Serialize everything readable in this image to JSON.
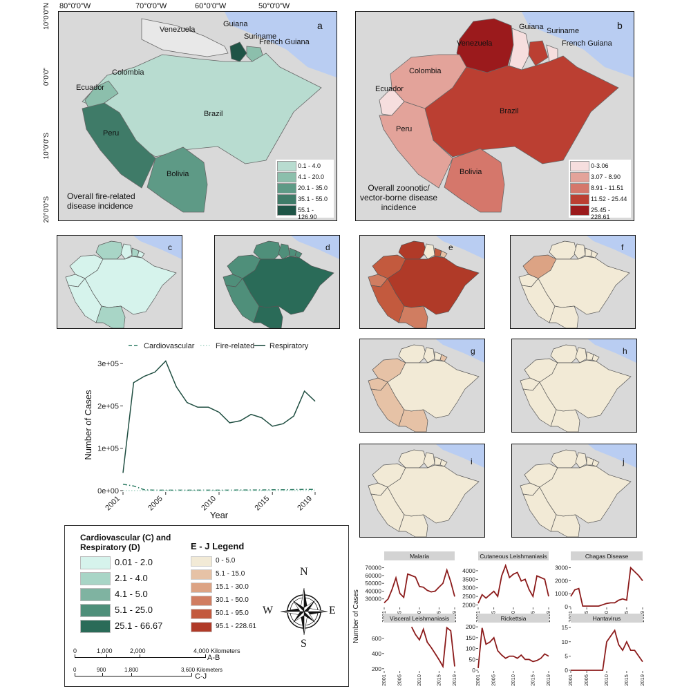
{
  "coords": {
    "top_longitudes": [
      "80°0'0\"W",
      "70°0'0\"W",
      "60°0'0\"W",
      "50°0'0\"W"
    ],
    "left_latitudes": [
      "10°0'0\"N",
      "0°0'0\"",
      "10°0'0\"S",
      "20°0'0\"S"
    ]
  },
  "panel_a": {
    "letter": "a",
    "title_line1": "Overall fire-related",
    "title_line2": "disease incidence",
    "countries": {
      "venezuela": "Venezuela",
      "guiana": "Guiana",
      "suriname": "Suriname",
      "french_guiana": "French Guiana",
      "colombia": "Colombia",
      "ecuador": "Ecuador",
      "brazil": "Brazil",
      "peru": "Peru",
      "bolivia": "Bolivia"
    },
    "legend": [
      {
        "label": "0.1 - 4.0",
        "color": "#b8dcd0"
      },
      {
        "label": "4.1 - 20.0",
        "color": "#8cbfac"
      },
      {
        "label": "20.1 - 35.0",
        "color": "#5e9a86"
      },
      {
        "label": "35.1 - 55.0",
        "color": "#3f7b68"
      },
      {
        "label": "55.1 - 126.90",
        "color": "#1f5446"
      }
    ]
  },
  "panel_b": {
    "letter": "b",
    "title_line1": "Overall zoonotic/",
    "title_line2": "vector-borne disease",
    "title_line3": "incidence",
    "countries": {
      "venezuela": "Venezuela",
      "guiana": "Guiana",
      "suriname": "Suriname",
      "french_guiana": "French Guiana",
      "colombia": "Colombia",
      "ecuador": "Ecuador",
      "brazil": "Brazil",
      "peru": "Peru",
      "bolivia": "Bolivia"
    },
    "legend": [
      {
        "label": "0-3.06",
        "color": "#f6dede"
      },
      {
        "label": "3.07 - 8.90",
        "color": "#e3a39a"
      },
      {
        "label": "8.91 - 11.51",
        "color": "#d5776b"
      },
      {
        "label": "11.52 - 25.44",
        "color": "#bb3f32"
      },
      {
        "label": "25.45 - 228.61",
        "color": "#9b1a1c"
      }
    ]
  },
  "small_panels": {
    "c": "c",
    "d": "d",
    "e": "e",
    "f": "f",
    "g": "g",
    "h": "h",
    "i": "i",
    "j": "j"
  },
  "legend_box": {
    "cr_title_line1": "Cardiovascular (C) and",
    "cr_title_line2": "Respiratory (D)",
    "cr_items": [
      {
        "label": "0.01 - 2.0",
        "color": "#d6f3ec"
      },
      {
        "label": "2.1 - 4.0",
        "color": "#a8d5c6"
      },
      {
        "label": "4.1 - 5.0",
        "color": "#7fb3a1"
      },
      {
        "label": "5.1 - 25.0",
        "color": "#4f8f7a"
      },
      {
        "label": "25.1 - 66.67",
        "color": "#2a6b58"
      }
    ],
    "ej_title": "E - J Legend",
    "ej_items": [
      {
        "label": "0 - 5.0",
        "color": "#f2ead6"
      },
      {
        "label": "5.1 - 15.0",
        "color": "#e6c2a6"
      },
      {
        "label": "15.1 - 30.0",
        "color": "#dca384"
      },
      {
        "label": "30.1 - 50.0",
        "color": "#d07d61"
      },
      {
        "label": "50.1 - 95.0",
        "color": "#c35a3e"
      },
      {
        "label": "95.1 - 228.61",
        "color": "#b03a28"
      }
    ],
    "compass": {
      "n": "N",
      "s": "S",
      "e": "E",
      "w": "W"
    },
    "scale_ab": {
      "ticks": [
        "0",
        "1,000",
        "2,000",
        "4,000 Kilometers"
      ],
      "label": "A-B"
    },
    "scale_cj": {
      "ticks": [
        "0",
        "900",
        "1,800",
        "3,600 Kilometers"
      ],
      "label": "C-J"
    }
  },
  "colors": {
    "ocean": "#b9cdf2",
    "land_other": "#d9d9d9",
    "border": "#555555"
  },
  "chart_data": [
    {
      "type": "line",
      "title": "",
      "xlabel": "Year",
      "ylabel": "Number of Cases",
      "x": [
        2001,
        2002,
        2003,
        2004,
        2005,
        2006,
        2007,
        2008,
        2009,
        2010,
        2011,
        2012,
        2013,
        2014,
        2015,
        2016,
        2017,
        2018,
        2019
      ],
      "xticks": [
        "2001",
        "2005",
        "2010",
        "2015",
        "2019"
      ],
      "yticks": [
        "0e+00",
        "1e+05",
        "2e+05",
        "3e+05"
      ],
      "ylim": [
        0,
        310000
      ],
      "legend": "top",
      "series": [
        {
          "name": "Cardiovascular",
          "color": "#2a7a62",
          "style": "dashed",
          "values": [
            15000,
            11000,
            2000,
            1000,
            1000,
            1000,
            1000,
            1000,
            1000,
            1000,
            1000,
            1500,
            1500,
            1500,
            2000,
            2000,
            2500,
            3000,
            3000
          ]
        },
        {
          "name": "Fire-related",
          "color": "#a8d5c6",
          "style": "dotted",
          "values": [
            0,
            0,
            0,
            0,
            0,
            0,
            0,
            0,
            0,
            0,
            0,
            0,
            0,
            0,
            0,
            0,
            0,
            0,
            0
          ]
        },
        {
          "name": "Respiratory",
          "color": "#1e4d40",
          "style": "solid",
          "values": [
            42000,
            255000,
            270000,
            280000,
            306000,
            245000,
            208000,
            197000,
            197000,
            185000,
            160000,
            165000,
            180000,
            172000,
            152000,
            158000,
            176000,
            235000,
            211000
          ]
        }
      ]
    },
    {
      "type": "line",
      "title": "",
      "ylabel": "Number of Cases",
      "x": [
        2001,
        2002,
        2003,
        2004,
        2005,
        2006,
        2007,
        2008,
        2009,
        2010,
        2011,
        2012,
        2013,
        2014,
        2015,
        2016,
        2017,
        2018,
        2019
      ],
      "xticks": [
        "2001",
        "2005",
        "2010",
        "2015",
        "2019"
      ],
      "facets": [
        {
          "name": "Malaria",
          "ylim": [
            20000,
            75000
          ],
          "yticks": [
            30000,
            40000,
            50000,
            60000,
            70000
          ],
          "values": [
            25000,
            30000,
            42000,
            57000,
            37000,
            32000,
            62000,
            60000,
            58000,
            46000,
            45000,
            41000,
            39000,
            40000,
            45000,
            50000,
            67000,
            52000,
            33000
          ]
        },
        {
          "name": "Cutaneous Leishmaniasis",
          "ylim": [
            1900,
            4400
          ],
          "yticks": [
            2000,
            2500,
            3000,
            3500,
            4000
          ],
          "values": [
            2100,
            2600,
            2400,
            2600,
            2800,
            2500,
            3700,
            4300,
            3600,
            3800,
            3900,
            3400,
            3500,
            2900,
            2500,
            3700,
            3600,
            3500,
            2500
          ]
        },
        {
          "name": "Chagas Disease",
          "ylim": [
            0,
            3300
          ],
          "yticks": [
            0,
            1000,
            2000,
            3000
          ],
          "values": [
            800,
            1300,
            1400,
            50,
            50,
            50,
            50,
            50,
            150,
            250,
            300,
            300,
            500,
            600,
            500,
            3000,
            2700,
            2400,
            2000
          ]
        },
        {
          "name": "Visceral Leishmaniasis",
          "ylim": [
            180,
            780
          ],
          "yticks": [
            200,
            400,
            600
          ],
          "values": [
            null,
            null,
            null,
            null,
            null,
            null,
            null,
            750,
            650,
            580,
            720,
            550,
            480,
            400,
            320,
            230,
            740,
            700,
            230
          ]
        },
        {
          "name": "Rickettsia",
          "ylim": [
            0,
            210
          ],
          "yticks": [
            0,
            50,
            100,
            150,
            200
          ],
          "values": [
            10,
            195,
            120,
            130,
            150,
            90,
            70,
            55,
            65,
            65,
            55,
            70,
            50,
            50,
            40,
            45,
            55,
            75,
            65
          ]
        },
        {
          "name": "Hantavirus",
          "ylim": [
            0,
            16
          ],
          "yticks": [
            0,
            5,
            10,
            15
          ],
          "values": [
            0,
            0,
            0,
            0,
            0,
            0,
            0,
            0,
            0,
            10,
            12,
            14,
            9,
            7,
            10,
            7,
            7,
            5,
            3
          ]
        }
      ]
    }
  ]
}
